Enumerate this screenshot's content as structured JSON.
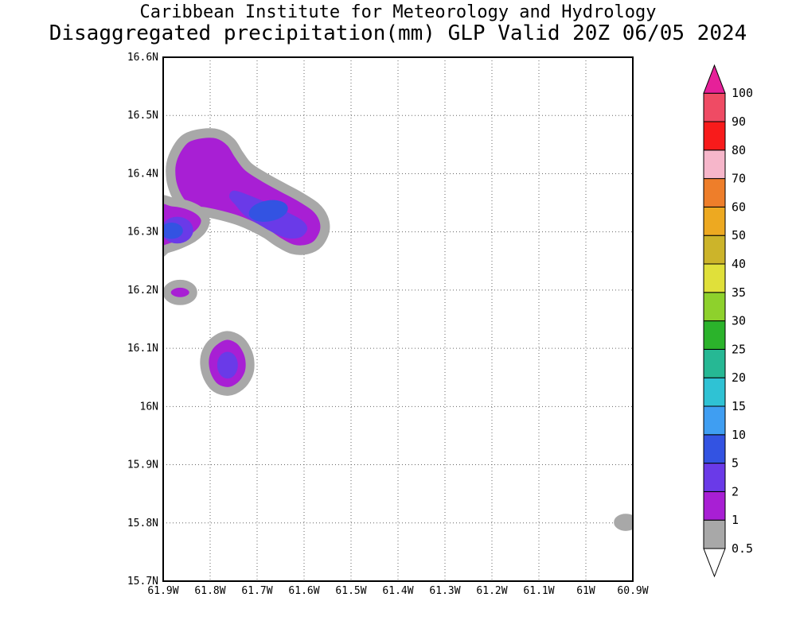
{
  "header": {
    "line1": "Caribbean Institute for Meteorology and Hydrology",
    "line2": "Disaggregated precipitation(mm) GLP Valid 20Z 06/05 2024"
  },
  "chart_data": {
    "type": "heatmap",
    "title": "Caribbean Institute for Meteorology and Hydrology",
    "subtitle": "Disaggregated precipitation(mm) GLP Valid 20Z 06/05 2024",
    "variable": "Disaggregated precipitation (mm)",
    "model": "GLP",
    "valid_time": "20Z 06/05 2024",
    "grid_style": "dotted",
    "frame_color": "#000000",
    "background_color": "#ffffff",
    "x_axis": {
      "ticks": [
        "61.9W",
        "61.8W",
        "61.7W",
        "61.6W",
        "61.5W",
        "61.4W",
        "61.3W",
        "61.2W",
        "61.1W",
        "61W",
        "60.9W"
      ],
      "values_deg_west": [
        61.9,
        61.8,
        61.7,
        61.6,
        61.5,
        61.4,
        61.3,
        61.2,
        61.1,
        61.0,
        60.9
      ]
    },
    "y_axis": {
      "ticks": [
        "16.6N",
        "16.5N",
        "16.4N",
        "16.3N",
        "16.2N",
        "16.1N",
        "16N",
        "15.9N",
        "15.8N",
        "15.7N"
      ],
      "values_deg_north": [
        16.6,
        16.5,
        16.4,
        16.3,
        16.2,
        16.1,
        16.0,
        15.9,
        15.8,
        15.7
      ]
    },
    "colorbar": {
      "levels_low_to_high": [
        "0.5",
        "1",
        "2",
        "5",
        "10",
        "15",
        "20",
        "25",
        "30",
        "35",
        "40",
        "50",
        "60",
        "70",
        "80",
        "90",
        "100"
      ],
      "band_colors_low_to_high": [
        "#ffffff",
        "#a8a8a8",
        "#a81fd4",
        "#6a3ae8",
        "#3353e2",
        "#3f9ef2",
        "#2fc2d4",
        "#26b894",
        "#2bb32b",
        "#8ed12c",
        "#e0e03a",
        "#ccb42a",
        "#eda921",
        "#ee7e2a",
        "#f6b6ca",
        "#f81b1b",
        "#ef4b64",
        "#e62099"
      ]
    },
    "features": [
      {
        "name": "north-rain-cell",
        "shape": "polygon",
        "band": "1-2 mm",
        "color_index": 2,
        "ring_color_index": 1,
        "ring_width": 12,
        "points": [
          [
            61.871,
            16.442
          ],
          [
            61.851,
            16.461
          ],
          [
            61.817,
            16.469
          ],
          [
            61.783,
            16.468
          ],
          [
            61.756,
            16.454
          ],
          [
            61.739,
            16.433
          ],
          [
            61.719,
            16.412
          ],
          [
            61.685,
            16.394
          ],
          [
            61.647,
            16.377
          ],
          [
            61.61,
            16.361
          ],
          [
            61.576,
            16.343
          ],
          [
            61.559,
            16.324
          ],
          [
            61.556,
            16.302
          ],
          [
            61.57,
            16.28
          ],
          [
            61.593,
            16.27
          ],
          [
            61.624,
            16.27
          ],
          [
            61.654,
            16.282
          ],
          [
            61.681,
            16.297
          ],
          [
            61.712,
            16.31
          ],
          [
            61.742,
            16.32
          ],
          [
            61.776,
            16.328
          ],
          [
            61.81,
            16.334
          ],
          [
            61.841,
            16.338
          ],
          [
            61.861,
            16.349
          ],
          [
            61.875,
            16.368
          ],
          [
            61.883,
            16.39
          ],
          [
            61.883,
            16.417
          ]
        ]
      },
      {
        "name": "north-rain-cell-inner",
        "shape": "polygon",
        "band": "2-5 mm",
        "color_index": 3,
        "points": [
          [
            61.749,
            16.371
          ],
          [
            61.708,
            16.36
          ],
          [
            61.668,
            16.346
          ],
          [
            61.631,
            16.332
          ],
          [
            61.603,
            16.319
          ],
          [
            61.593,
            16.305
          ],
          [
            61.607,
            16.291
          ],
          [
            61.634,
            16.289
          ],
          [
            61.664,
            16.298
          ],
          [
            61.695,
            16.312
          ],
          [
            61.725,
            16.327
          ],
          [
            61.746,
            16.346
          ],
          [
            61.759,
            16.36
          ]
        ]
      },
      {
        "name": "north-rain-cell-core",
        "shape": "ellipse",
        "band": "5-10 mm",
        "color_index": 4,
        "center": [
          61.676,
          16.336
        ],
        "rx_deg": 0.042,
        "ry_deg": 0.018,
        "rot_deg": -10
      },
      {
        "name": "west-edge-band",
        "shape": "polygon",
        "band": "1-2 mm",
        "color_index": 2,
        "ring_color_index": 1,
        "ring_width": 11,
        "points": [
          [
            61.912,
            16.349
          ],
          [
            61.878,
            16.351
          ],
          [
            61.844,
            16.345
          ],
          [
            61.82,
            16.334
          ],
          [
            61.81,
            16.32
          ],
          [
            61.817,
            16.304
          ],
          [
            61.836,
            16.29
          ],
          [
            61.863,
            16.279
          ],
          [
            61.892,
            16.271
          ],
          [
            61.912,
            16.267
          ]
        ]
      },
      {
        "name": "west-edge-band-inner",
        "shape": "ellipse",
        "band": "2-5 mm",
        "color_index": 3,
        "center": [
          61.87,
          16.303
        ],
        "rx_deg": 0.034,
        "ry_deg": 0.023,
        "rot_deg": 0
      },
      {
        "name": "west-edge-band-core",
        "shape": "ellipse",
        "band": "5-10 mm",
        "color_index": 4,
        "center": [
          61.882,
          16.302
        ],
        "rx_deg": 0.024,
        "ry_deg": 0.014,
        "rot_deg": 0
      },
      {
        "name": "small-rain-cell",
        "shape": "ellipse",
        "band": "1-2 mm",
        "color_index": 2,
        "ring_color_index": 1,
        "ring_width": 10,
        "center": [
          61.864,
          16.196
        ],
        "rx_deg": 0.028,
        "ry_deg": 0.015,
        "rot_deg": 0
      },
      {
        "name": "south-rain-cell",
        "shape": "polygon",
        "band": "1-2 mm",
        "color_index": 2,
        "ring_color_index": 1,
        "ring_width": 11,
        "points": [
          [
            61.793,
            16.111
          ],
          [
            61.766,
            16.122
          ],
          [
            61.739,
            16.115
          ],
          [
            61.722,
            16.097
          ],
          [
            61.715,
            16.075
          ],
          [
            61.719,
            16.054
          ],
          [
            61.736,
            16.035
          ],
          [
            61.761,
            16.026
          ],
          [
            61.788,
            16.032
          ],
          [
            61.805,
            16.05
          ],
          [
            61.812,
            16.073
          ],
          [
            61.808,
            16.094
          ]
        ]
      },
      {
        "name": "south-rain-cell-core",
        "shape": "ellipse",
        "band": "2-5 mm",
        "color_index": 3,
        "center": [
          61.763,
          16.071
        ],
        "rx_deg": 0.022,
        "ry_deg": 0.023,
        "rot_deg": 0
      },
      {
        "name": "east-edge-spot",
        "shape": "ellipse",
        "band": "0.5-1 mm",
        "color_index": 1,
        "ring_color_index": 1,
        "ring_width": 4,
        "center": [
          60.915,
          15.801
        ],
        "rx_deg": 0.022,
        "ry_deg": 0.012,
        "rot_deg": 0
      }
    ]
  }
}
